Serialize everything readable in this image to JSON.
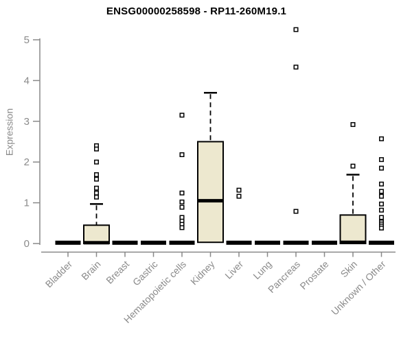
{
  "chart_data": {
    "type": "boxplot",
    "title": "ENSG00000258598 - RP11-260M19.1",
    "ylabel": "Expression",
    "xlabel": "",
    "ylim": [
      0,
      5
    ],
    "yticks": [
      0,
      1,
      2,
      3,
      4,
      5
    ],
    "grid": false,
    "legend": null,
    "categories": [
      "Bladder",
      "Brain",
      "Breast",
      "Gastric",
      "Hematopoietic cells",
      "Kidney",
      "Liver",
      "Lung",
      "Pancreas",
      "Prostate",
      "Skin",
      "Unknown / Other"
    ],
    "boxes": [
      {
        "category": "Bladder",
        "q1": 0,
        "median": 0.02,
        "q3": 0.02,
        "whisker_low": 0,
        "whisker_high": 0.02,
        "outliers": []
      },
      {
        "category": "Brain",
        "q1": 0,
        "median": 0.02,
        "q3": 0.45,
        "whisker_low": 0,
        "whisker_high": 0.97,
        "outliers": [
          2.4,
          2.32,
          2.0,
          1.69,
          1.58,
          1.36,
          1.24,
          1.14
        ]
      },
      {
        "category": "Breast",
        "q1": 0,
        "median": 0.02,
        "q3": 0.02,
        "whisker_low": 0,
        "whisker_high": 0.02,
        "outliers": []
      },
      {
        "category": "Gastric",
        "q1": 0,
        "median": 0.02,
        "q3": 0.02,
        "whisker_low": 0,
        "whisker_high": 0.02,
        "outliers": []
      },
      {
        "category": "Hematopoietic cells",
        "q1": 0,
        "median": 0.02,
        "q3": 0.02,
        "whisker_low": 0,
        "whisker_high": 0.02,
        "outliers": [
          3.15,
          2.18,
          1.24,
          1.02,
          0.89,
          0.64,
          0.55,
          0.47,
          0.39
        ]
      },
      {
        "category": "Kidney",
        "q1": 0.03,
        "median": 1.05,
        "q3": 2.5,
        "whisker_low": 0.03,
        "whisker_high": 3.7,
        "outliers": []
      },
      {
        "category": "Liver",
        "q1": 0,
        "median": 0.02,
        "q3": 0.02,
        "whisker_low": 0,
        "whisker_high": 0.02,
        "outliers": [
          1.31,
          1.16
        ]
      },
      {
        "category": "Lung",
        "q1": 0,
        "median": 0.02,
        "q3": 0.02,
        "whisker_low": 0,
        "whisker_high": 0.02,
        "outliers": []
      },
      {
        "category": "Pancreas",
        "q1": 0,
        "median": 0.02,
        "q3": 0.02,
        "whisker_low": 0,
        "whisker_high": 0.02,
        "outliers": [
          5.25,
          4.33,
          0.79
        ]
      },
      {
        "category": "Prostate",
        "q1": 0,
        "median": 0.02,
        "q3": 0.02,
        "whisker_low": 0,
        "whisker_high": 0.02,
        "outliers": []
      },
      {
        "category": "Skin",
        "q1": 0,
        "median": 0.03,
        "q3": 0.7,
        "whisker_low": 0,
        "whisker_high": 1.69,
        "outliers": [
          2.92,
          1.9
        ]
      },
      {
        "category": "Unknown / Other",
        "q1": 0,
        "median": 0.02,
        "q3": 0.02,
        "whisker_low": 0,
        "whisker_high": 0.02,
        "outliers": [
          2.57,
          2.06,
          1.85,
          1.46,
          1.28,
          1.16,
          0.97,
          0.82,
          0.64,
          0.53,
          0.48,
          0.43,
          0.38
        ]
      }
    ],
    "colors": {
      "background": "#ffffff",
      "box_fill": "#EDE8CF",
      "box_stroke": "#000000",
      "median": "#000000",
      "outlier_stroke": "#000000",
      "outlier_fill": "#ffffff",
      "axis": "#888888",
      "tick_label": "#8a8a8a",
      "title": "#000000"
    }
  }
}
